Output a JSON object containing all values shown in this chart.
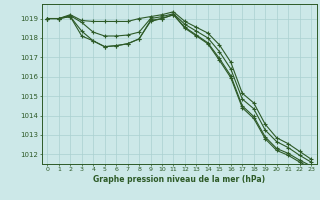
{
  "x": [
    0,
    1,
    2,
    3,
    4,
    5,
    6,
    7,
    8,
    9,
    10,
    11,
    12,
    13,
    14,
    15,
    16,
    17,
    18,
    19,
    20,
    21,
    22,
    23
  ],
  "line1": [
    1019.0,
    1019.0,
    1019.2,
    1018.9,
    1018.85,
    1018.85,
    1018.85,
    1018.85,
    1019.0,
    1019.1,
    1019.2,
    1019.35,
    1018.85,
    1018.55,
    1018.25,
    1017.65,
    1016.75,
    1015.15,
    1014.65,
    1013.55,
    1012.85,
    1012.55,
    1012.15,
    1011.75
  ],
  "line2": [
    1019.0,
    1019.0,
    1019.15,
    1018.8,
    1018.3,
    1018.1,
    1018.1,
    1018.15,
    1018.3,
    1019.0,
    1019.1,
    1019.25,
    1018.7,
    1018.35,
    1018.0,
    1017.3,
    1016.4,
    1014.85,
    1014.35,
    1013.25,
    1012.65,
    1012.35,
    1011.95,
    1011.6
  ],
  "line3": [
    1019.0,
    1019.0,
    1019.1,
    1018.35,
    1017.85,
    1017.55,
    1017.6,
    1017.7,
    1017.95,
    1018.9,
    1019.0,
    1019.2,
    1018.55,
    1018.15,
    1017.75,
    1016.95,
    1016.05,
    1014.5,
    1013.95,
    1012.9,
    1012.3,
    1012.05,
    1011.7,
    1011.4
  ],
  "line4": [
    1019.0,
    1019.0,
    1019.1,
    1018.1,
    1017.85,
    1017.55,
    1017.6,
    1017.7,
    1017.95,
    1018.85,
    1019.0,
    1019.2,
    1018.5,
    1018.1,
    1017.7,
    1016.85,
    1015.95,
    1014.4,
    1013.85,
    1012.8,
    1012.2,
    1011.95,
    1011.6,
    1011.3
  ],
  "line_color": "#2d5a27",
  "bg_color": "#cce8e8",
  "grid_color": "#aad0d0",
  "xlabel_label": "Graphe pression niveau de la mer (hPa)",
  "ylim": [
    1011.5,
    1019.75
  ],
  "yticks": [
    1012,
    1013,
    1014,
    1015,
    1016,
    1017,
    1018,
    1019
  ],
  "xticks": [
    0,
    1,
    2,
    3,
    4,
    5,
    6,
    7,
    8,
    9,
    10,
    11,
    12,
    13,
    14,
    15,
    16,
    17,
    18,
    19,
    20,
    21,
    22,
    23
  ]
}
